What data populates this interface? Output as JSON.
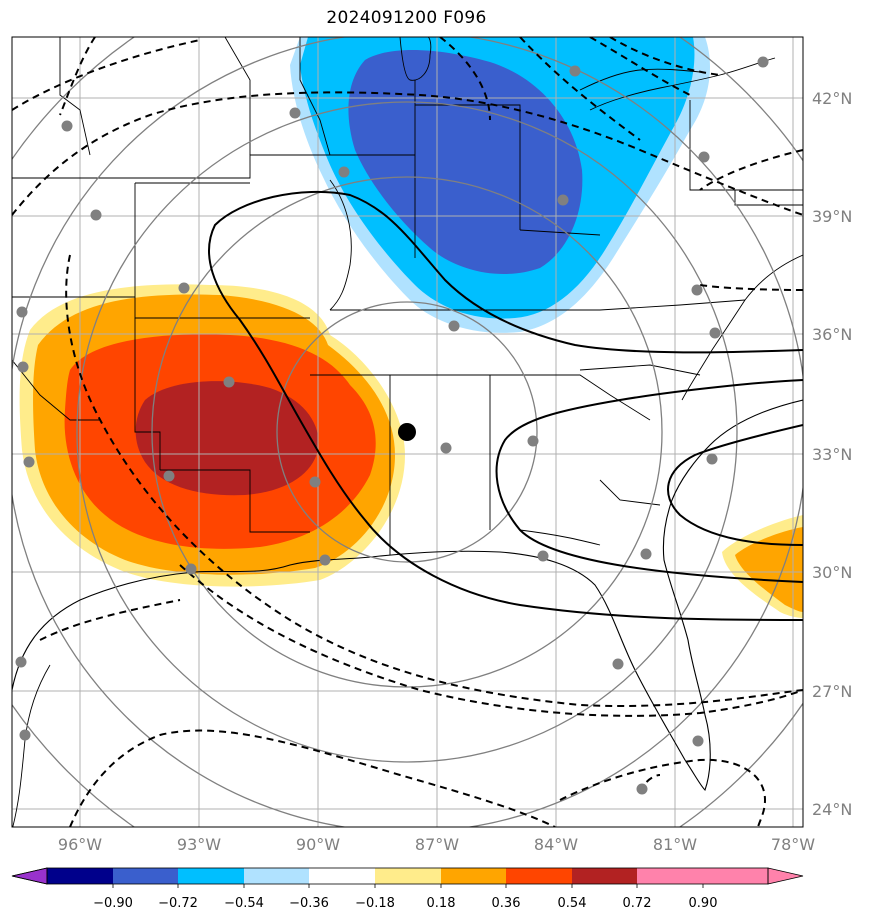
{
  "title": "2024091200 F096",
  "lat_labels": [
    "42°N",
    "39°N",
    "36°N",
    "33°N",
    "30°N",
    "27°N",
    "24°N"
  ],
  "lon_labels": [
    "96°W",
    "93°W",
    "90°W",
    "87°W",
    "84°W",
    "81°W",
    "78°W"
  ],
  "colorbar": {
    "labels": [
      "−0.90",
      "−0.72",
      "−0.54",
      "−0.36",
      "−0.18",
      "0.18",
      "0.36",
      "0.54",
      "0.72",
      "0.90"
    ],
    "colors": [
      "#9932cc",
      "#00008b",
      "#3a5fcd",
      "#00bfff",
      "#b0e2ff",
      "#ffffff",
      "#ffec8b",
      "#ffa500",
      "#ff4500",
      "#b22222",
      "#ff82ab"
    ]
  },
  "colors": {
    "contour": "#000000",
    "range_ring": "#808080",
    "gridline": "#b0b0b0",
    "station": "#808080",
    "center_marker": "#000000"
  }
}
